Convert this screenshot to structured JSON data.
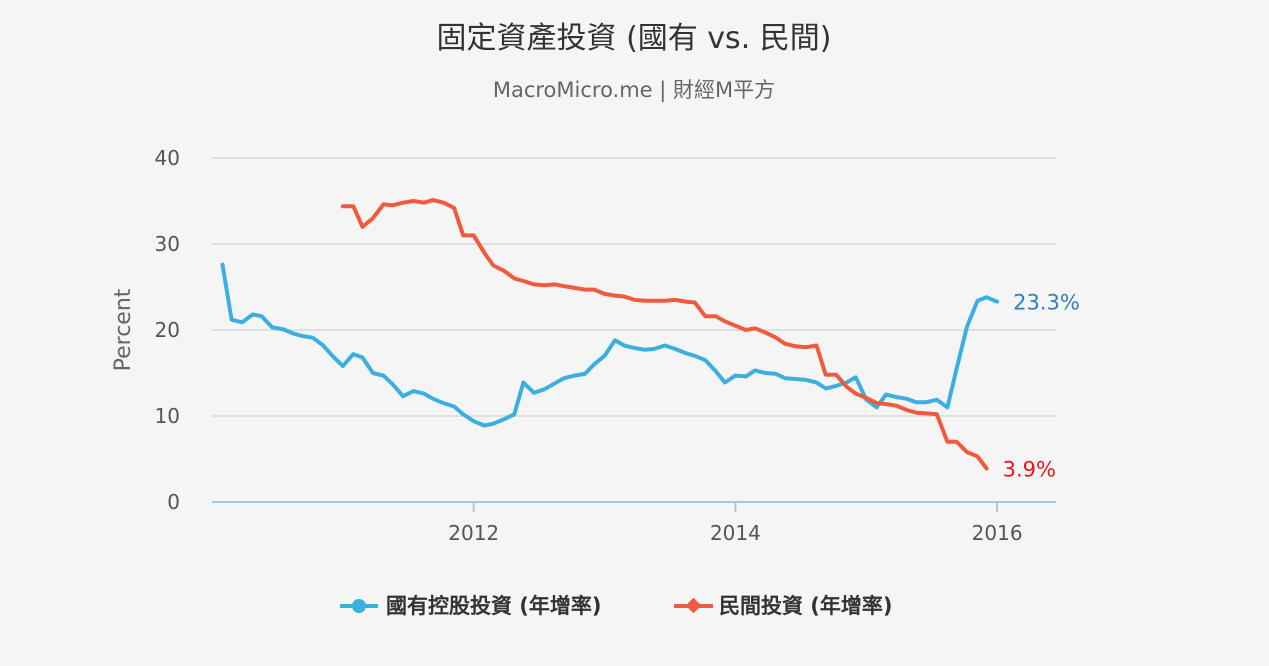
{
  "chart_data": {
    "type": "line",
    "title": "固定資產投資 (國有 vs. 民間)",
    "subtitle": "MacroMicro.me | 財經M平方",
    "ylabel": "Percent",
    "ylim": [
      0,
      40
    ],
    "yticks": [
      0,
      10,
      20,
      30,
      40
    ],
    "xlim": [
      2010.0,
      2016.45
    ],
    "xticks": [
      {
        "value": 2012,
        "label": "2012"
      },
      {
        "value": 2014,
        "label": "2014"
      },
      {
        "value": 2016,
        "label": "2016"
      }
    ],
    "grid": true,
    "legend_position": "bottom-center",
    "series": [
      {
        "name": "國有控股投資 (年增率)",
        "color": "#3bb0e0",
        "marker": "circle",
        "end_label": "23.3%",
        "end_label_color": "#2f7fc0",
        "points": [
          [
            2010.08,
            27.6
          ],
          [
            2010.15,
            21.2
          ],
          [
            2010.23,
            20.9
          ],
          [
            2010.31,
            21.8
          ],
          [
            2010.38,
            21.6
          ],
          [
            2010.46,
            20.3
          ],
          [
            2010.54,
            20.1
          ],
          [
            2010.62,
            19.6
          ],
          [
            2010.69,
            19.3
          ],
          [
            2010.77,
            19.1
          ],
          [
            2010.85,
            18.2
          ],
          [
            2010.92,
            17.0
          ],
          [
            2011.0,
            15.8
          ],
          [
            2011.08,
            17.2
          ],
          [
            2011.15,
            16.8
          ],
          [
            2011.23,
            15.0
          ],
          [
            2011.31,
            14.7
          ],
          [
            2011.38,
            13.7
          ],
          [
            2011.46,
            12.3
          ],
          [
            2011.54,
            12.9
          ],
          [
            2011.62,
            12.6
          ],
          [
            2011.69,
            12.0
          ],
          [
            2011.77,
            11.5
          ],
          [
            2011.85,
            11.1
          ],
          [
            2011.92,
            10.2
          ],
          [
            2012.0,
            9.4
          ],
          [
            2012.08,
            8.9
          ],
          [
            2012.15,
            9.1
          ],
          [
            2012.23,
            9.6
          ],
          [
            2012.31,
            10.2
          ],
          [
            2012.38,
            13.9
          ],
          [
            2012.46,
            12.7
          ],
          [
            2012.54,
            13.1
          ],
          [
            2012.62,
            13.8
          ],
          [
            2012.69,
            14.4
          ],
          [
            2012.77,
            14.7
          ],
          [
            2012.85,
            14.9
          ],
          [
            2012.92,
            16.0
          ],
          [
            2013.0,
            17.0
          ],
          [
            2013.08,
            18.8
          ],
          [
            2013.15,
            18.2
          ],
          [
            2013.23,
            17.9
          ],
          [
            2013.31,
            17.7
          ],
          [
            2013.38,
            17.8
          ],
          [
            2013.46,
            18.2
          ],
          [
            2013.54,
            17.8
          ],
          [
            2013.62,
            17.3
          ],
          [
            2013.69,
            17.0
          ],
          [
            2013.77,
            16.5
          ],
          [
            2013.85,
            15.2
          ],
          [
            2013.92,
            13.9
          ],
          [
            2014.0,
            14.7
          ],
          [
            2014.08,
            14.6
          ],
          [
            2014.15,
            15.3
          ],
          [
            2014.23,
            15.0
          ],
          [
            2014.31,
            14.9
          ],
          [
            2014.38,
            14.4
          ],
          [
            2014.46,
            14.3
          ],
          [
            2014.54,
            14.2
          ],
          [
            2014.62,
            13.9
          ],
          [
            2014.69,
            13.2
          ],
          [
            2014.77,
            13.5
          ],
          [
            2014.85,
            13.9
          ],
          [
            2014.92,
            14.5
          ],
          [
            2015.0,
            11.9
          ],
          [
            2015.08,
            11.0
          ],
          [
            2015.15,
            12.5
          ],
          [
            2015.23,
            12.2
          ],
          [
            2015.31,
            12.0
          ],
          [
            2015.38,
            11.6
          ],
          [
            2015.46,
            11.6
          ],
          [
            2015.54,
            11.9
          ],
          [
            2015.62,
            11.0
          ],
          [
            2015.69,
            15.5
          ],
          [
            2015.77,
            20.4
          ],
          [
            2015.85,
            23.4
          ],
          [
            2015.92,
            23.8
          ],
          [
            2016.0,
            23.3
          ]
        ]
      },
      {
        "name": "民間投資 (年增率)",
        "color": "#ef5b3c",
        "marker": "diamond",
        "end_label": "3.9%",
        "end_label_color": "#e8161a",
        "points": [
          [
            2011.0,
            34.4
          ],
          [
            2011.08,
            34.4
          ],
          [
            2011.15,
            32.0
          ],
          [
            2011.23,
            33.0
          ],
          [
            2011.31,
            34.6
          ],
          [
            2011.38,
            34.5
          ],
          [
            2011.46,
            34.8
          ],
          [
            2011.54,
            35.0
          ],
          [
            2011.62,
            34.8
          ],
          [
            2011.69,
            35.1
          ],
          [
            2011.77,
            34.8
          ],
          [
            2011.85,
            34.2
          ],
          [
            2011.92,
            31.0
          ],
          [
            2012.0,
            31.0
          ],
          [
            2012.08,
            29.0
          ],
          [
            2012.15,
            27.5
          ],
          [
            2012.23,
            26.9
          ],
          [
            2012.31,
            26.0
          ],
          [
            2012.38,
            25.7
          ],
          [
            2012.46,
            25.3
          ],
          [
            2012.54,
            25.2
          ],
          [
            2012.62,
            25.3
          ],
          [
            2012.69,
            25.1
          ],
          [
            2012.77,
            24.9
          ],
          [
            2012.85,
            24.7
          ],
          [
            2012.92,
            24.7
          ],
          [
            2013.0,
            24.2
          ],
          [
            2013.08,
            24.0
          ],
          [
            2013.15,
            23.9
          ],
          [
            2013.23,
            23.5
          ],
          [
            2013.31,
            23.4
          ],
          [
            2013.38,
            23.4
          ],
          [
            2013.46,
            23.4
          ],
          [
            2013.54,
            23.5
          ],
          [
            2013.62,
            23.3
          ],
          [
            2013.69,
            23.2
          ],
          [
            2013.77,
            21.6
          ],
          [
            2013.85,
            21.6
          ],
          [
            2013.92,
            21.0
          ],
          [
            2014.0,
            20.5
          ],
          [
            2014.08,
            20.0
          ],
          [
            2014.15,
            20.2
          ],
          [
            2014.23,
            19.7
          ],
          [
            2014.31,
            19.1
          ],
          [
            2014.38,
            18.4
          ],
          [
            2014.46,
            18.1
          ],
          [
            2014.54,
            18.0
          ],
          [
            2014.62,
            18.2
          ],
          [
            2014.69,
            14.8
          ],
          [
            2014.77,
            14.8
          ],
          [
            2014.85,
            13.4
          ],
          [
            2014.92,
            12.6
          ],
          [
            2015.0,
            12.1
          ],
          [
            2015.08,
            11.5
          ],
          [
            2015.15,
            11.4
          ],
          [
            2015.23,
            11.2
          ],
          [
            2015.31,
            10.7
          ],
          [
            2015.38,
            10.4
          ],
          [
            2015.46,
            10.3
          ],
          [
            2015.54,
            10.2
          ],
          [
            2015.62,
            7.0
          ],
          [
            2015.69,
            7.0
          ],
          [
            2015.77,
            5.8
          ],
          [
            2015.85,
            5.3
          ],
          [
            2015.92,
            3.9
          ]
        ]
      }
    ]
  }
}
